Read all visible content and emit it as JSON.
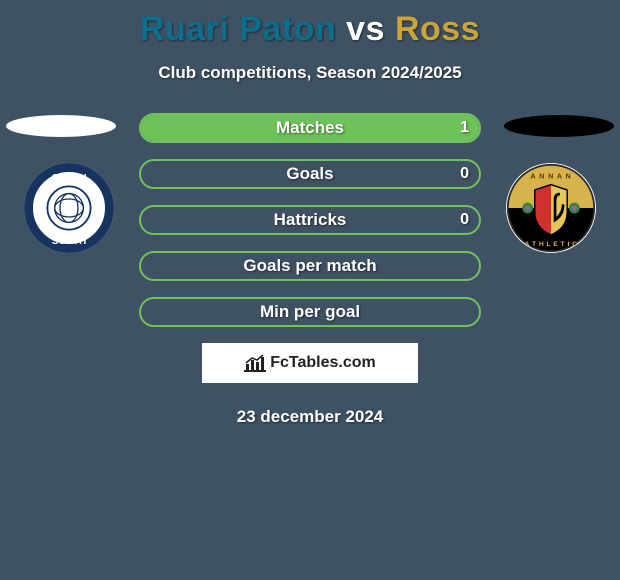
{
  "background_color": "#3f5264",
  "title": {
    "left": {
      "text": "Ruari Paton",
      "color": "#0d6e8c"
    },
    "vs": {
      "text": "vs",
      "color": "#ffffff"
    },
    "right": {
      "text": "Ross",
      "color": "#c9a43a"
    }
  },
  "subtitle": "Club competitions, Season 2024/2025",
  "crest_left": {
    "ellipse_color": "#ffffff",
    "ring_outer": "#17335f",
    "ring_inner": "#ffffff",
    "text_color": "#17335f"
  },
  "crest_right": {
    "ellipse_color": "#000000",
    "band_top": "#d8b24a",
    "band_bot": "#000000",
    "shield_left": "#d22f2f",
    "shield_right": "#e6c85a",
    "thistle": "#2e8b3d"
  },
  "bars": {
    "border_color": "#6fc15a",
    "fill_color": "#6fc15a",
    "rows": [
      {
        "label": "Matches",
        "left": "",
        "right": "1",
        "left_pct": 0,
        "right_pct": 100
      },
      {
        "label": "Goals",
        "left": "",
        "right": "0",
        "left_pct": 0,
        "right_pct": 0
      },
      {
        "label": "Hattricks",
        "left": "",
        "right": "0",
        "left_pct": 0,
        "right_pct": 0
      },
      {
        "label": "Goals per match",
        "left": "",
        "right": "",
        "left_pct": 0,
        "right_pct": 0
      },
      {
        "label": "Min per goal",
        "left": "",
        "right": "",
        "left_pct": 0,
        "right_pct": 0
      }
    ]
  },
  "brand": {
    "text": "FcTables.com",
    "box_bg": "#ffffff",
    "text_color": "#222222",
    "icon_color": "#222222"
  },
  "date": "23 december 2024"
}
